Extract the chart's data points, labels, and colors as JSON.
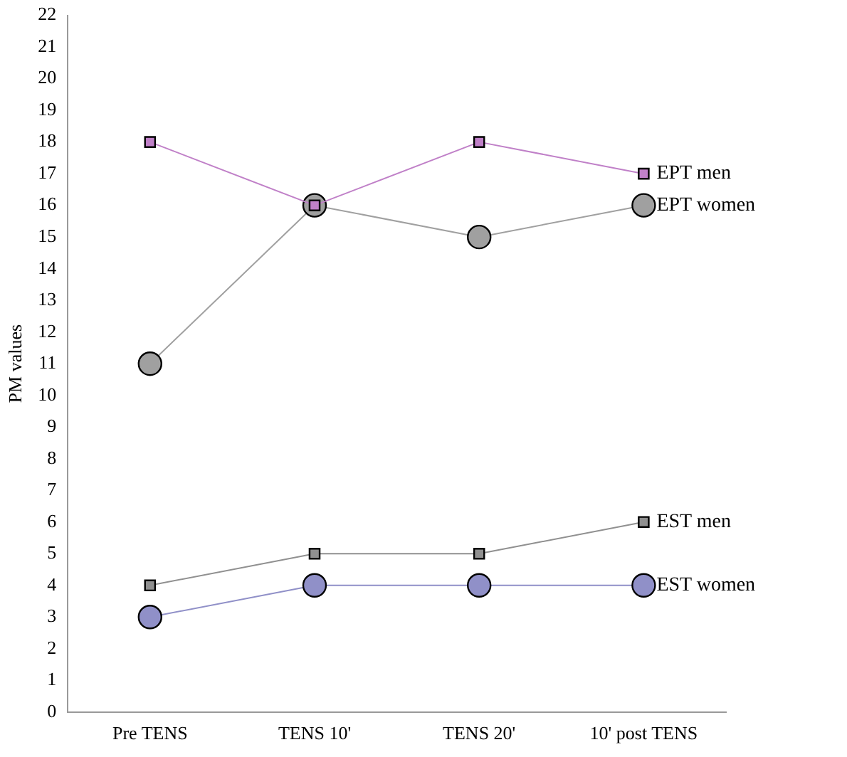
{
  "chart_data": {
    "type": "line",
    "ylabel": "PM values",
    "categories": [
      "Pre TENS",
      "TENS 10'",
      "TENS 20'",
      "10' post TENS"
    ],
    "ylim": [
      0,
      22
    ],
    "yticks": [
      0,
      1,
      2,
      3,
      4,
      5,
      6,
      7,
      8,
      9,
      10,
      11,
      12,
      13,
      14,
      15,
      16,
      17,
      18,
      19,
      20,
      21,
      22
    ],
    "grid": false,
    "legend": false,
    "series": [
      {
        "name": "EPT men",
        "color": "#c080c8",
        "marker": "square",
        "values": [
          18,
          16,
          18,
          17
        ]
      },
      {
        "name": "EPT women",
        "color": "#a0a0a0",
        "marker": "circle",
        "values": [
          11,
          16,
          15,
          16
        ]
      },
      {
        "name": "EST men",
        "color": "#909090",
        "marker": "square",
        "values": [
          4,
          5,
          5,
          6
        ]
      },
      {
        "name": "EST women",
        "color": "#9090c8",
        "marker": "circle",
        "values": [
          3,
          4,
          4,
          4
        ]
      }
    ]
  }
}
